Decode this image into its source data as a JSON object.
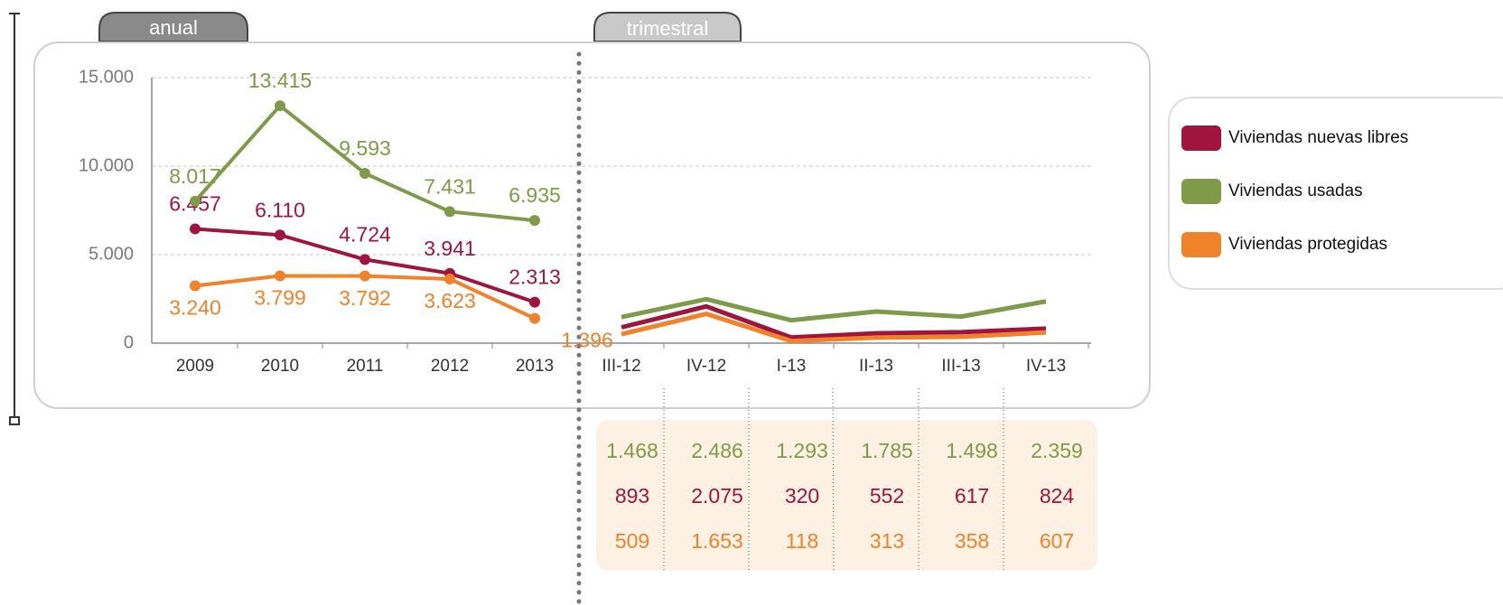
{
  "chart_data": [
    {
      "type": "line",
      "title": "anual",
      "categories": [
        "2009",
        "2010",
        "2011",
        "2012",
        "2013"
      ],
      "ylim": [
        0,
        15000
      ],
      "yticks": [
        0,
        {
          "value": 5000,
          "label": "5.000"
        },
        {
          "value": 10000,
          "label": "10.000"
        },
        {
          "value": 15000,
          "label": "15.000"
        }
      ],
      "grid": true,
      "series": [
        {
          "name": "Viviendas nuevas libres",
          "color": "#a0153e",
          "values": [
            6457,
            6110,
            4724,
            3941,
            2313
          ],
          "value_labels": [
            "6.457",
            "6.110",
            "4.724",
            "3.941",
            "2.313"
          ]
        },
        {
          "name": "Viviendas usadas",
          "color": "#7f9a48",
          "values": [
            8017,
            13415,
            9593,
            7431,
            6935
          ],
          "value_labels": [
            "8.017",
            "13.415",
            "9.593",
            "7.431",
            "6.935"
          ]
        },
        {
          "name": "Viviendas protegidas",
          "color": "#f0822a",
          "values": [
            3240,
            3799,
            3792,
            3623,
            1396
          ],
          "value_labels": [
            "3.240",
            "3.799",
            "3.792",
            "3.623",
            "1.396"
          ]
        }
      ]
    },
    {
      "type": "line",
      "title": "trimestral",
      "categories": [
        "III-12",
        "IV-12",
        "I-13",
        "II-13",
        "III-13",
        "IV-13"
      ],
      "series": [
        {
          "color": "#a0153e",
          "values": [
            893,
            2075,
            320,
            552,
            617,
            824
          ],
          "value_labels": [
            "893",
            "2.075",
            "320",
            "552",
            "617",
            "824"
          ]
        },
        {
          "color": "#7f9a48",
          "values": [
            1468,
            2486,
            1293,
            1785,
            1498,
            2359
          ],
          "value_labels": [
            "1.468",
            "2.486",
            "1.293",
            "1.785",
            "1.498",
            "2.359"
          ]
        },
        {
          "color": "#f0822a",
          "values": [
            509,
            1653,
            118,
            313,
            358,
            607
          ],
          "value_labels": [
            "509",
            "1.653",
            "118",
            "313",
            "358",
            "607"
          ]
        }
      ]
    }
  ]
}
